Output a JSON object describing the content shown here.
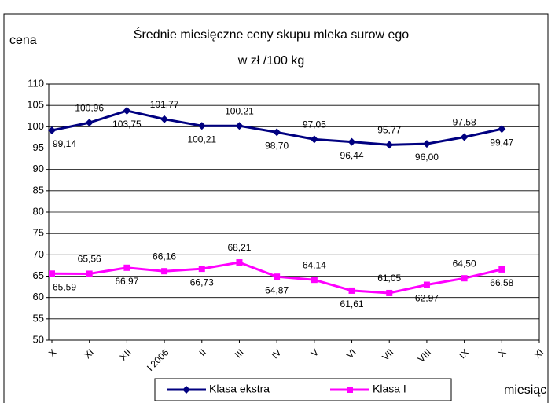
{
  "chart_data": {
    "type": "line",
    "title": "Średnie miesięczne ceny skupu mleka surow ego",
    "subtitle": "w zł /100 kg",
    "y_label": "cena",
    "x_label": "miesiąc",
    "categories": [
      "X",
      "XI",
      "XII",
      "I 2006",
      "II",
      "III",
      "IV",
      "V",
      "VI",
      "VII",
      "VIII",
      "IX",
      "X",
      "XI"
    ],
    "series": [
      {
        "name": "Klasa ekstra",
        "color": "#000080",
        "marker": "diamond",
        "values": [
          99.14,
          100.96,
          103.75,
          101.77,
          100.21,
          100.21,
          98.7,
          97.05,
          96.44,
          95.77,
          96.0,
          97.58,
          99.47,
          null
        ],
        "value_labels": [
          "99,14",
          "100,96",
          "103,75",
          "101,77",
          "100,21",
          "100,21",
          "98,70",
          "97,05",
          "96,44",
          "95,77",
          "96,00",
          "97,58",
          "99,47",
          null
        ]
      },
      {
        "name": "Klasa I",
        "color": "#ff00ff",
        "marker": "square",
        "values": [
          65.59,
          65.56,
          66.97,
          66.16,
          66.73,
          68.21,
          64.87,
          64.14,
          61.61,
          61.05,
          62.97,
          64.5,
          66.58,
          null
        ],
        "value_labels": [
          "65,59",
          "65,56",
          "66,97",
          "66,16",
          "66,73",
          "68,21",
          "64,87",
          "64,14",
          "61,61",
          "61,05",
          "62,97",
          "64,50",
          "66,58",
          null
        ]
      }
    ],
    "ylim": [
      50,
      110
    ],
    "yticks": [
      50,
      55,
      60,
      65,
      70,
      75,
      80,
      85,
      90,
      95,
      100,
      105,
      110
    ],
    "grid": true,
    "legend": "bottom"
  }
}
